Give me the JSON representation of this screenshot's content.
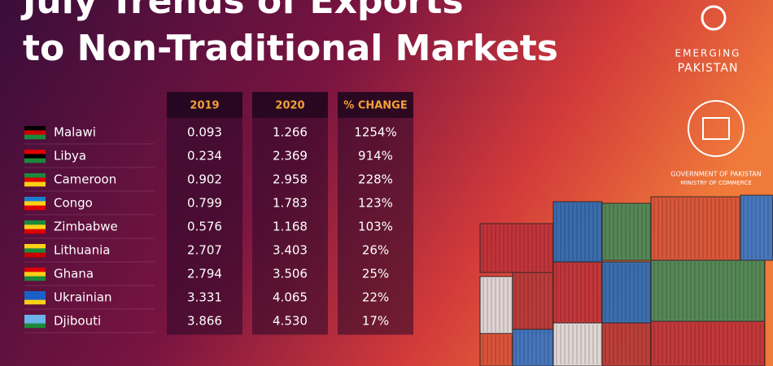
{
  "header": {
    "title_lines": [
      "July Trends of Exports",
      "to Non-Traditional Markets"
    ]
  },
  "logos": {
    "brand": [
      "EMERGING",
      "PAKISTAN"
    ],
    "government": "GOVERNMENT OF PAKISTAN",
    "ministry": "MINISTRY OF COMMERCE"
  },
  "table": {
    "columns": [
      "2019",
      "2020",
      "% CHANGE"
    ],
    "rows": [
      [
        "Malawi",
        "0.093",
        "1.266",
        "1254%"
      ],
      [
        "Libya",
        "0.234",
        "2.369",
        "914%"
      ],
      [
        "Cameroon",
        "0.902",
        "2.958",
        "228%"
      ],
      [
        "Congo",
        "0.799",
        "1.783",
        "123%"
      ],
      [
        "Zimbabwe",
        "0.576",
        "1.168",
        "103%"
      ],
      [
        "Lithuania",
        "2.707",
        "3.403",
        "26%"
      ],
      [
        "Ghana",
        "2.794",
        "3.506",
        "25%"
      ],
      [
        "Ukrainian",
        "3.331",
        "4.065",
        "22%"
      ],
      [
        "Djibouti",
        "3.866",
        "4.530",
        "17%"
      ]
    ]
  }
}
